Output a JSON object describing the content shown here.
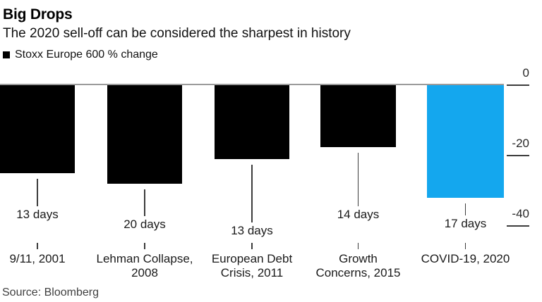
{
  "header": {
    "title": "Big Drops",
    "subtitle": "The 2020 sell-off can be considered the sharpest in history"
  },
  "legend": {
    "label": "Stoxx Europe 600 % change",
    "swatch_color": "#000000"
  },
  "axis": {
    "side": "right",
    "ticks": [
      {
        "label": "0",
        "value": 0
      },
      {
        "label": "-20",
        "value": -20
      },
      {
        "label": "-40",
        "value": -40
      }
    ]
  },
  "chart_data": {
    "type": "bar",
    "title": "Big Drops",
    "subtitle": "The 2020 sell-off can be considered the sharpest in history",
    "series_name": "Stoxx Europe 600 % change",
    "categories": [
      "9/11, 2001",
      "Lehman Collapse, 2008",
      "European Debt Crisis, 2011",
      "Growth Concerns, 2015",
      "COVID-19, 2020"
    ],
    "category_display": [
      "9/11, 2001",
      "Lehman Collapse,\n2008",
      "European Debt\nCrisis, 2011",
      "Growth\nConcerns, 2015",
      "COVID-19, 2020"
    ],
    "durations": [
      "13 days",
      "20 days",
      "13 days",
      "14 days",
      "17 days"
    ],
    "values": [
      -25,
      -28,
      -21,
      -17.5,
      -32
    ],
    "unit": "%",
    "ylim": [
      -40,
      0
    ],
    "grid": false,
    "legend_position": "top-left",
    "bar_color": "#000000",
    "highlight_color": "#14a7ee",
    "highlight_index": 4
  },
  "source": {
    "label": "Source: Bloomberg"
  }
}
